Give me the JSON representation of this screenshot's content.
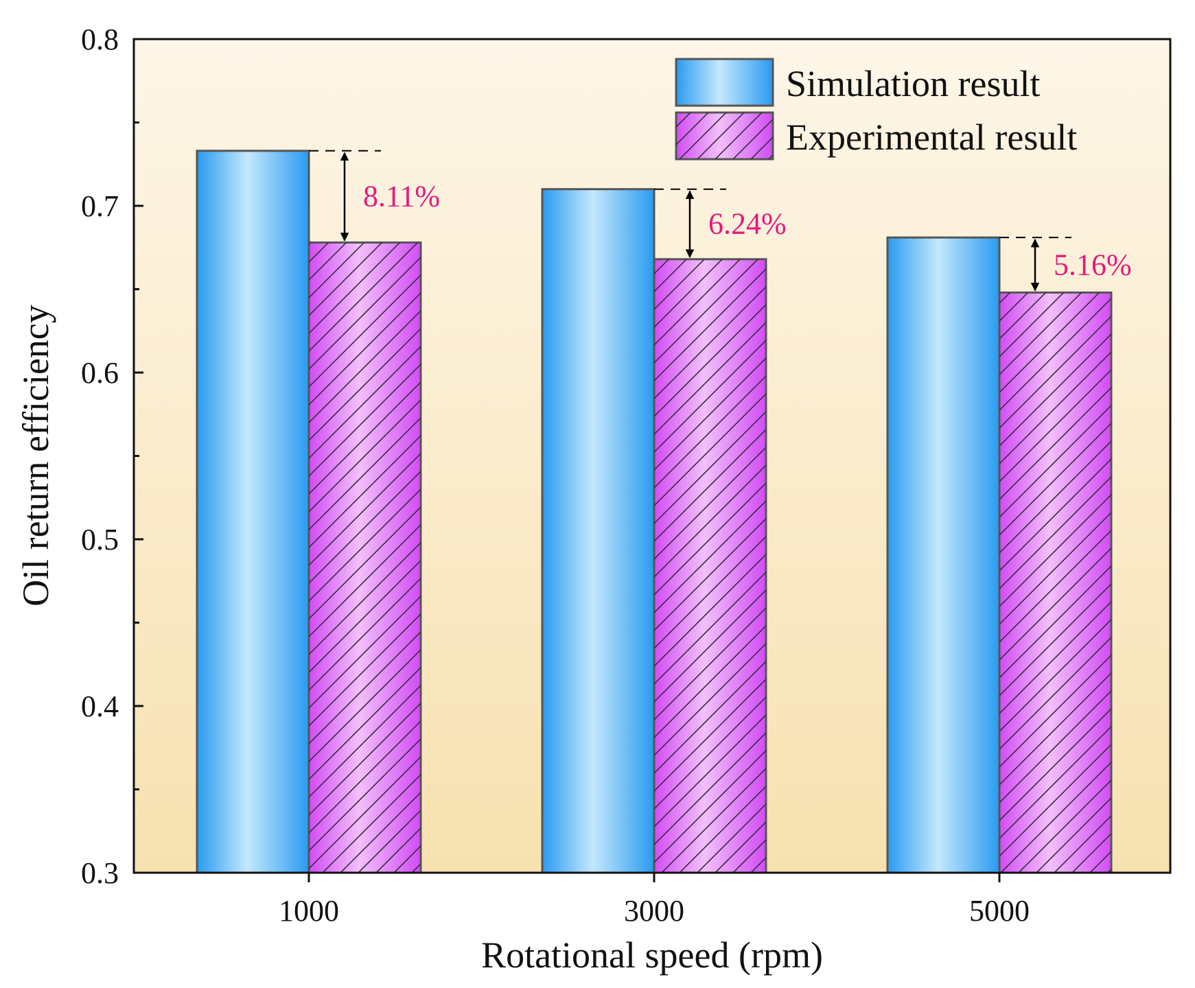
{
  "chart_data": {
    "type": "bar",
    "title": "",
    "xlabel": "Rotational speed (rpm)",
    "ylabel": "Oil return efficiency",
    "categories": [
      "1000",
      "3000",
      "5000"
    ],
    "ylim": [
      0.3,
      0.8
    ],
    "yticks": [
      0.3,
      0.4,
      0.5,
      0.6,
      0.7,
      0.8
    ],
    "ytick_labels": [
      "0.3",
      "0.4",
      "0.5",
      "0.6",
      "0.7",
      "0.8"
    ],
    "series": [
      {
        "name": "Simulation result",
        "values": [
          0.733,
          0.71,
          0.681
        ]
      },
      {
        "name": "Experimental result",
        "values": [
          0.678,
          0.668,
          0.648
        ]
      }
    ],
    "annotations": [
      "8.11%",
      "6.24%",
      "5.16%"
    ],
    "legend_position": "top-right",
    "grid": false
  },
  "colors": {
    "background_top": "#fdf6e8",
    "background_bottom": "#f7e1b0",
    "sim_edge": "#2a9bf0",
    "sim_center": "#c4e8fc",
    "exp_edge": "#d24cf5",
    "exp_center": "#f2c0fa",
    "annotation": "#e6197d",
    "outline": "#555555"
  }
}
